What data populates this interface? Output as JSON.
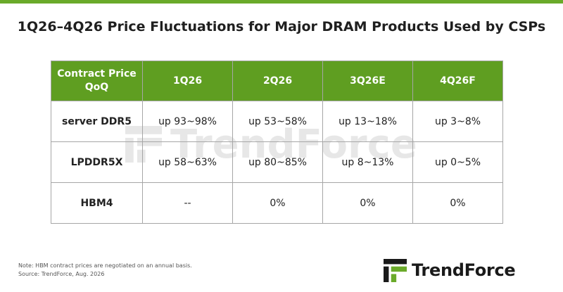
{
  "title": "1Q26–4Q26 Price Fluctuations for Major DRAM Products Used by CSPs",
  "table": {
    "header": {
      "first_line1": "Contract Price",
      "first_line2": "QoQ",
      "columns": [
        "1Q26",
        "2Q26",
        "3Q26E",
        "4Q26F"
      ]
    },
    "rows": [
      {
        "label": "server DDR5",
        "values": [
          "up 93~98%",
          "up 53~58%",
          "up 13~18%",
          "up 3~8%"
        ]
      },
      {
        "label": "LPDDR5X",
        "values": [
          "up 58~63%",
          "up 80~85%",
          "up 8~13%",
          "up 0~5%"
        ]
      },
      {
        "label": "HBM4",
        "values": [
          "--",
          "0%",
          "0%",
          "0%"
        ]
      }
    ]
  },
  "footnote": {
    "note": "Note: HBM contract prices are negotiated on an annual basis.",
    "source": "Source: TrendForce, Aug. 2026"
  },
  "logo": {
    "text": "TrendForce",
    "icon": "trendforce-logo-icon",
    "accent_color": "#6aaa2a"
  },
  "watermark": {
    "text": "TrendForce"
  },
  "colors": {
    "header_bg": "#5f9e21",
    "accent": "#6aaa2a",
    "border": "#a6a6a6"
  }
}
